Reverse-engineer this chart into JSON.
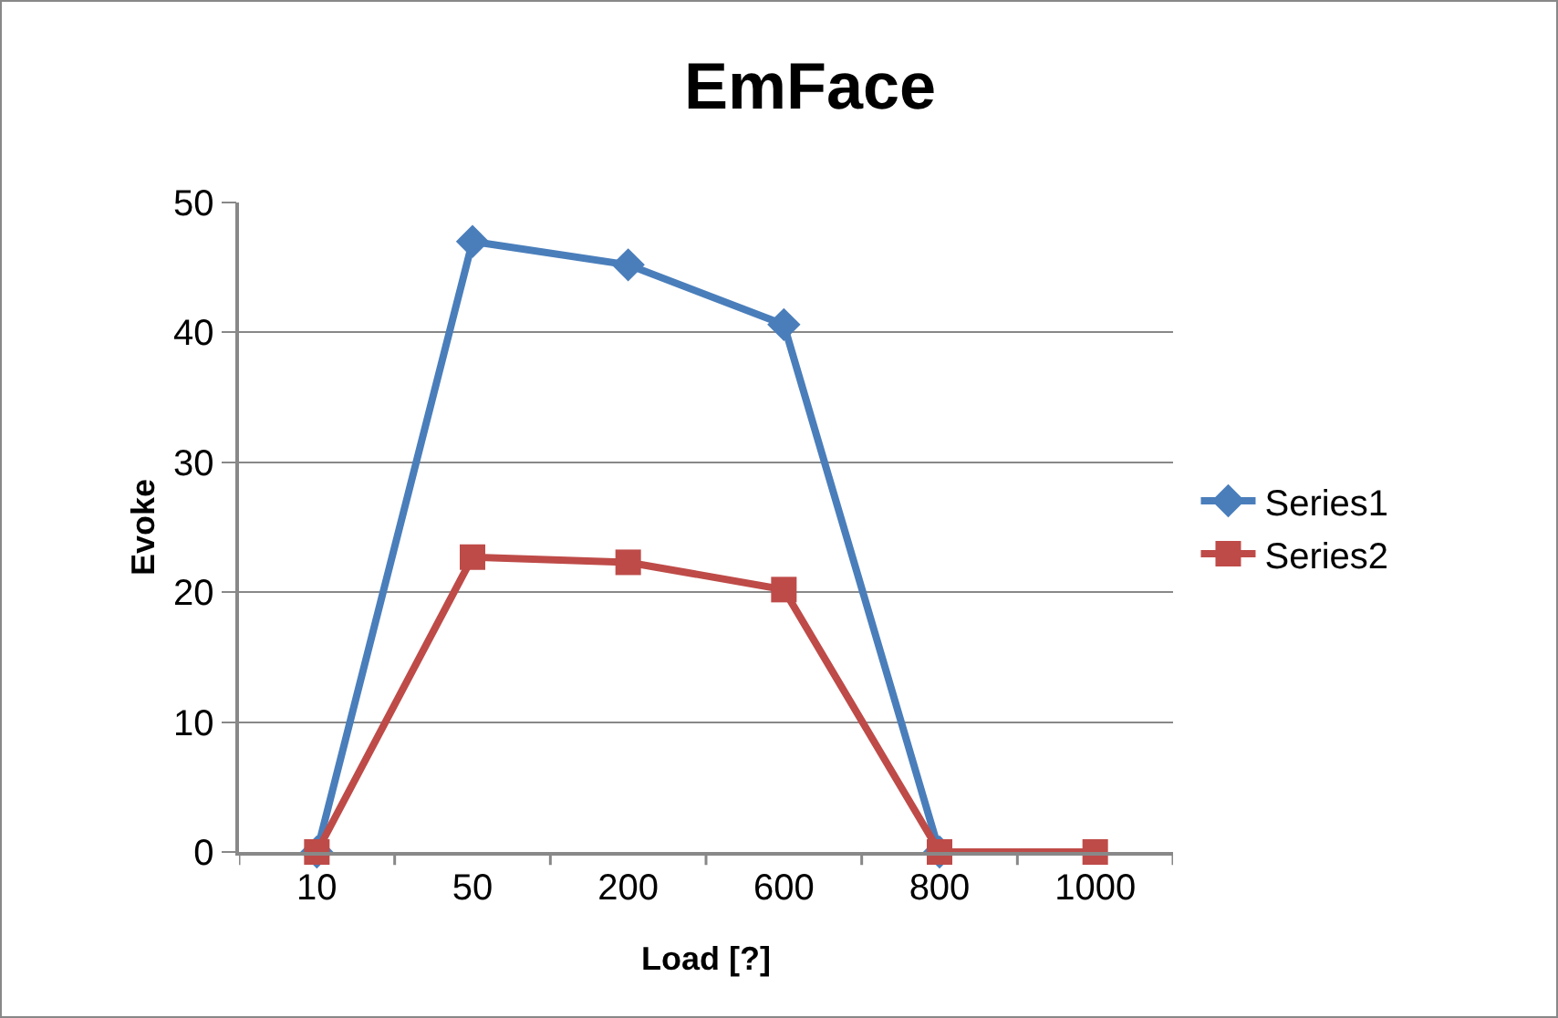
{
  "chart_data": {
    "type": "line",
    "title": "EmFace",
    "xlabel": "Load [?]",
    "ylabel": "Evoke",
    "categories": [
      "10",
      "50",
      "200",
      "600",
      "800",
      "1000"
    ],
    "series": [
      {
        "name": "Series1",
        "color": "#4a7ebb",
        "marker": "diamond",
        "values": [
          0,
          47,
          45.2,
          40.6,
          0,
          null
        ]
      },
      {
        "name": "Series2",
        "color": "#be4b48",
        "marker": "square",
        "values": [
          0,
          22.7,
          22.3,
          20.2,
          0,
          0
        ]
      }
    ],
    "ylim": [
      0,
      50
    ],
    "yticks": [
      0,
      10,
      20,
      30,
      40,
      50
    ],
    "grid": "y",
    "legend": "right",
    "line_style": "solid"
  }
}
